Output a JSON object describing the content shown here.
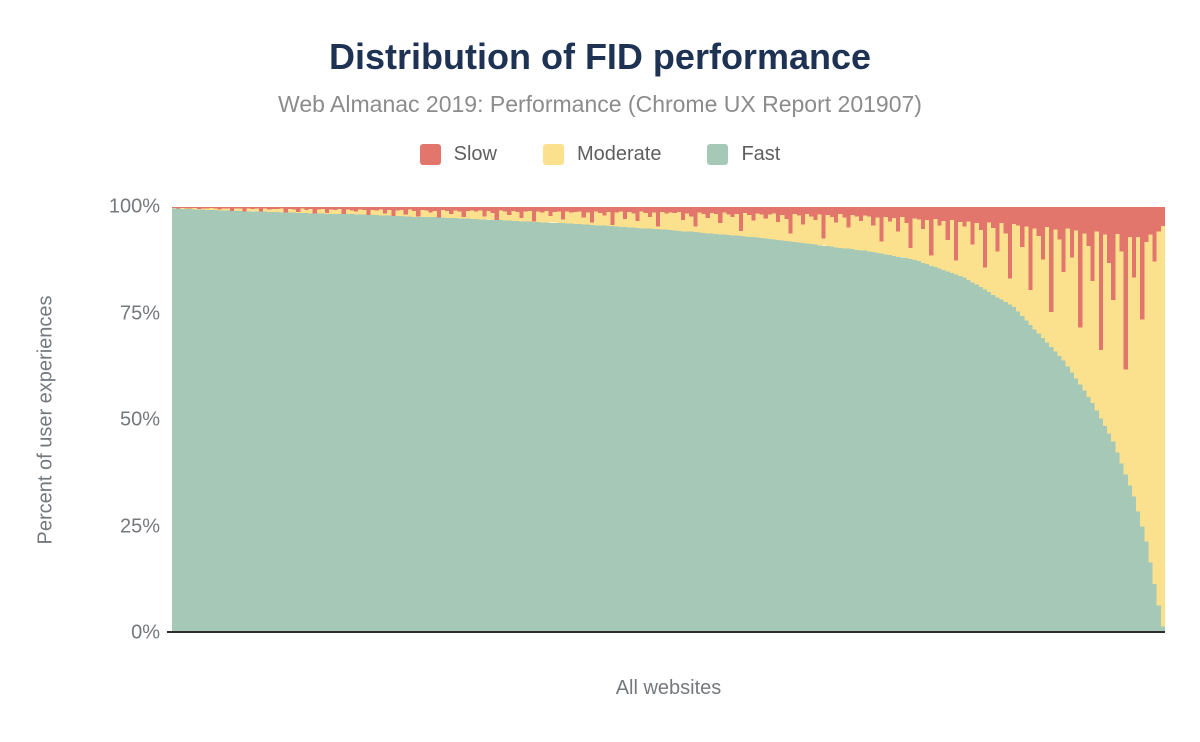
{
  "header": {
    "title": "Distribution of FID performance",
    "subtitle": "Web Almanac 2019: Performance (Chrome UX Report 201907)"
  },
  "colors": {
    "background": "#ffffff",
    "title_text": "#1e3353",
    "subtitle_text": "#8c8c8c",
    "legend_text": "#5f5f5f",
    "axis_text": "#75787d",
    "axis_line": "#2d2d2d",
    "slow": "#e2756c",
    "moderate": "#fbe18e",
    "fast": "#a6c8b6"
  },
  "chart_data": {
    "type": "bar",
    "variant": "stacked-100-percent",
    "title": "Distribution of FID performance",
    "subtitle": "Web Almanac 2019: Performance (Chrome UX Report 201907)",
    "xlabel": "All websites",
    "ylabel": "Percent of user experiences",
    "ylim": [
      0,
      100
    ],
    "grid": false,
    "legend_position": "top",
    "x_tick_labels": [],
    "yticks": [
      {
        "value": 100,
        "label": "100%"
      },
      {
        "value": 75,
        "label": "75%"
      },
      {
        "value": 50,
        "label": "50%"
      },
      {
        "value": 25,
        "label": "25%"
      },
      {
        "value": 0,
        "label": "0%"
      }
    ],
    "bar_count": 240,
    "layout_note": "one thin bar per website, sorted by decreasing Fast share; Fast stacked at bottom, Moderate in middle, Slow on top",
    "series": [
      {
        "name": "Slow",
        "color": "#e2756c",
        "values": [
          0.2,
          0.3,
          0.2,
          0.4,
          0.3,
          0.2,
          0.5,
          0.3,
          0.4,
          0.2,
          0.3,
          0.6,
          0.4,
          0.3,
          1.2,
          0.4,
          0.3,
          1.5,
          0.4,
          0.5,
          0.3,
          1.1,
          0.4,
          0.6,
          0.5,
          0.5,
          0.4,
          1.8,
          0.5,
          0.6,
          1.2,
          0.4,
          0.7,
          0.5,
          2.1,
          0.6,
          0.5,
          1.4,
          0.6,
          0.7,
          0.5,
          1.9,
          0.6,
          0.8,
          1.1,
          0.6,
          0.7,
          2.3,
          0.7,
          0.8,
          0.6,
          1.5,
          0.7,
          2.6,
          0.8,
          0.7,
          1.8,
          0.6,
          0.9,
          2.2,
          0.7,
          0.8,
          1.3,
          0.9,
          2.8,
          0.7,
          0.9,
          1.6,
          0.8,
          1.0,
          2.4,
          0.9,
          0.8,
          1.0,
          0.8,
          2.2,
          0.9,
          1.4,
          3.1,
          0.8,
          1.1,
          1.9,
          0.9,
          1.2,
          2.6,
          1.0,
          0.9,
          3.4,
          1.1,
          1.3,
          0.9,
          2.1,
          1.2,
          1.0,
          2.9,
          1.1,
          1.3,
          1.2,
          1.0,
          2.5,
          1.3,
          3.6,
          1.1,
          1.4,
          2.0,
          1.2,
          4.2,
          1.3,
          1.1,
          2.8,
          1.2,
          1.5,
          3.3,
          1.0,
          1.4,
          2.3,
          1.3,
          4.6,
          1.2,
          1.5,
          1.3,
          1.4,
          1.2,
          3.0,
          1.5,
          2.2,
          4.6,
          1.3,
          1.6,
          2.6,
          1.4,
          1.7,
          3.8,
          1.3,
          1.8,
          2.4,
          1.6,
          5.6,
          1.4,
          1.9,
          3.2,
          1.5,
          1.8,
          2.7,
          1.8,
          1.5,
          3.5,
          1.9,
          2.8,
          6.2,
          1.6,
          2.0,
          4.1,
          1.7,
          2.2,
          3.0,
          1.8,
          7.4,
          1.9,
          2.3,
          3.6,
          1.7,
          2.5,
          4.8,
          1.9,
          2.2,
          3.3,
          2.0,
          2.2,
          4.4,
          2.5,
          8.1,
          2.3,
          3.4,
          2.6,
          5.7,
          2.4,
          3.8,
          9.6,
          2.7,
          2.9,
          5.2,
          3.1,
          11.4,
          2.8,
          4.3,
          3.3,
          7.8,
          3.0,
          12.6,
          3.5,
          4.6,
          3.4,
          8.8,
          3.7,
          5.4,
          14.2,
          3.6,
          4.9,
          10.5,
          3.8,
          6.2,
          16.8,
          4.0,
          4.3,
          9.4,
          4.6,
          19.5,
          5.0,
          6.8,
          12.3,
          4.7,
          24.6,
          5.3,
          7.6,
          15.2,
          5.0,
          11.8,
          5.5,
          28.3,
          6.2,
          9.1,
          17.4,
          5.8,
          33.6,
          6.5,
          13.2,
          21.8,
          6.3,
          10.4,
          38.2,
          7.1,
          16.5,
          7.0,
          26.4,
          8.2,
          6.5,
          12.8,
          5.8,
          4.5
        ]
      },
      {
        "name": "Moderate",
        "color": "#fbe18e",
        "values": "remainder_to_100"
      },
      {
        "name": "Fast",
        "color": "#a6c8b6",
        "values": [
          99.6,
          99.6,
          99.5,
          99.5,
          99.5,
          99.4,
          99.4,
          99.4,
          99.3,
          99.3,
          99.3,
          99.2,
          99.2,
          99.2,
          99.1,
          99.1,
          99.1,
          99.0,
          99.0,
          99.0,
          98.9,
          98.9,
          98.9,
          98.8,
          98.8,
          98.8,
          98.7,
          98.7,
          98.7,
          98.7,
          98.6,
          98.6,
          98.6,
          98.5,
          98.5,
          98.5,
          98.5,
          98.4,
          98.4,
          98.4,
          98.3,
          98.3,
          98.3,
          98.3,
          98.2,
          98.2,
          98.2,
          98.1,
          98.1,
          98.1,
          98.0,
          98.0,
          98.0,
          97.9,
          97.9,
          97.9,
          97.8,
          97.8,
          97.7,
          97.7,
          97.7,
          97.6,
          97.6,
          97.6,
          97.5,
          97.5,
          97.4,
          97.4,
          97.4,
          97.3,
          97.3,
          97.3,
          97.2,
          97.2,
          97.1,
          97.1,
          97.0,
          97.0,
          96.9,
          96.9,
          96.8,
          96.8,
          96.7,
          96.7,
          96.6,
          96.6,
          96.6,
          96.5,
          96.5,
          96.4,
          96.4,
          96.3,
          96.3,
          96.2,
          96.2,
          96.1,
          96.1,
          96.0,
          96.0,
          95.9,
          95.9,
          95.8,
          95.7,
          95.7,
          95.6,
          95.5,
          95.5,
          95.4,
          95.3,
          95.3,
          95.2,
          95.2,
          95.1,
          95.0,
          95.0,
          94.9,
          94.8,
          94.8,
          94.7,
          94.7,
          94.6,
          94.5,
          94.4,
          94.3,
          94.3,
          94.2,
          94.1,
          94.0,
          93.9,
          93.8,
          93.8,
          93.7,
          93.6,
          93.5,
          93.4,
          93.3,
          93.3,
          93.2,
          93.1,
          93.0,
          92.9,
          92.8,
          92.7,
          92.6,
          92.5,
          92.4,
          92.3,
          92.1,
          92.0,
          91.9,
          91.8,
          91.7,
          91.5,
          91.4,
          91.3,
          91.2,
          91.0,
          90.9,
          90.8,
          90.7,
          90.5,
          90.4,
          90.3,
          90.2,
          90.1,
          89.9,
          89.8,
          89.8,
          89.6,
          89.4,
          89.2,
          89.1,
          88.9,
          88.7,
          88.5,
          88.3,
          88.2,
          88.0,
          87.8,
          87.6,
          87.3,
          86.9,
          86.6,
          86.2,
          85.9,
          85.6,
          85.2,
          84.9,
          84.5,
          84.2,
          83.8,
          83.5,
          82.9,
          82.3,
          81.8,
          81.2,
          80.6,
          80.0,
          79.4,
          78.8,
          78.3,
          77.7,
          77.1,
          76.5,
          75.5,
          74.4,
          73.4,
          72.3,
          71.3,
          70.3,
          69.2,
          68.2,
          67.1,
          66.1,
          65.0,
          64.0,
          62.6,
          61.1,
          59.7,
          58.3,
          56.9,
          55.4,
          54.0,
          52.2,
          50.4,
          48.6,
          46.8,
          45.0,
          42.4,
          39.8,
          37.2,
          34.6,
          32.0,
          28.5,
          25.0,
          21.5,
          16.5,
          11.5,
          6.5,
          1.5
        ]
      }
    ]
  }
}
